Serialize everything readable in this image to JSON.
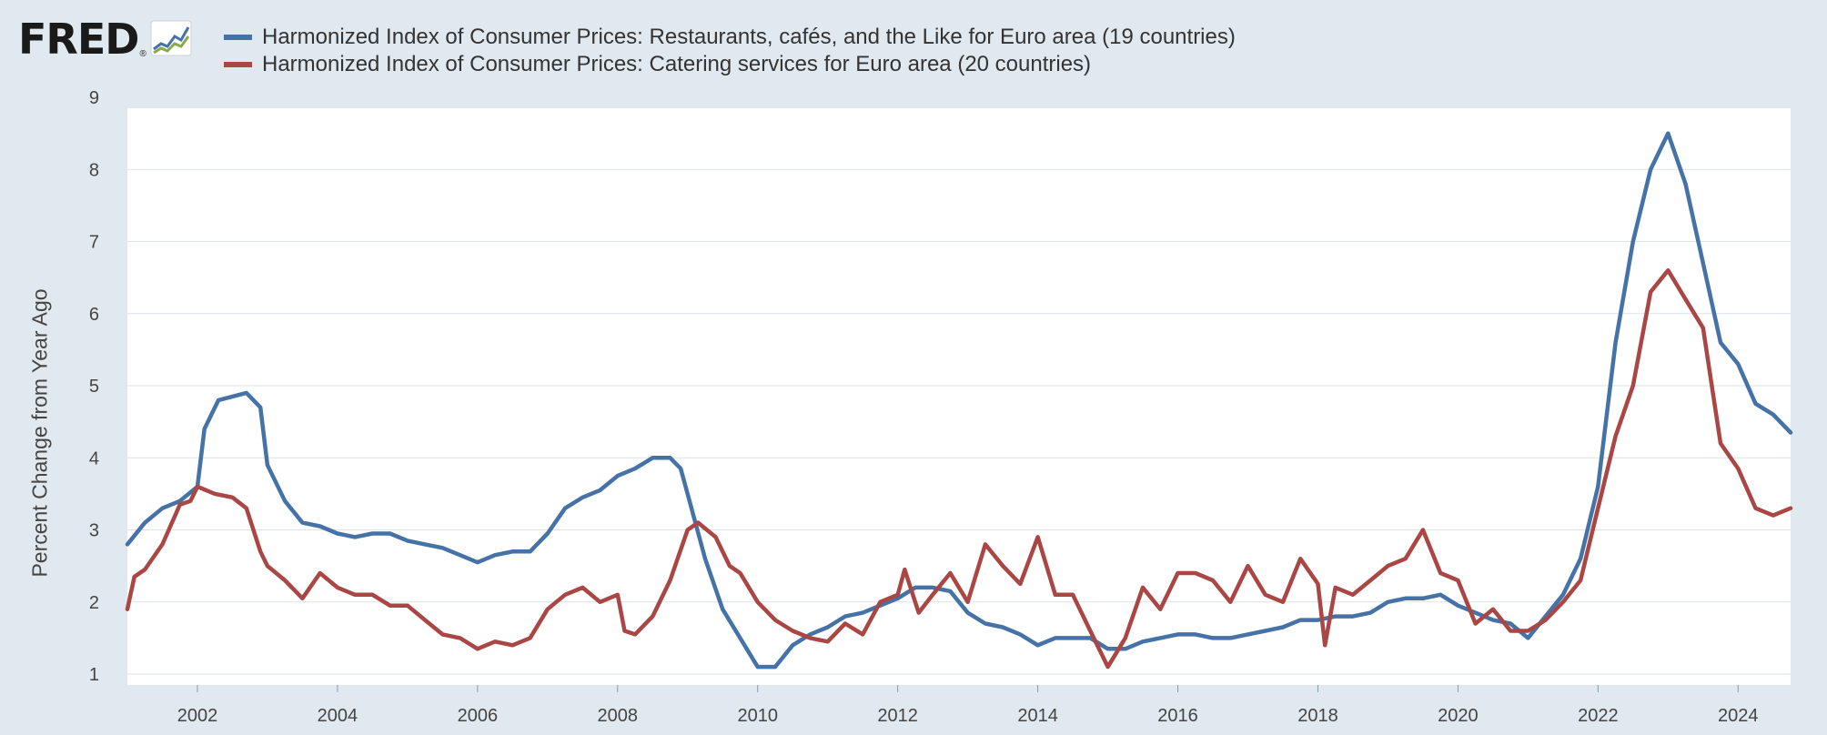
{
  "logo": {
    "text": "FRED",
    "reg_mark": "®",
    "icon": "line-chart-icon"
  },
  "legend": [
    {
      "label": "Harmonized Index of Consumer Prices: Restaurants, cafés, and the Like for Euro area (19 countries)",
      "color": "#4572a7"
    },
    {
      "label": "Harmonized Index of Consumer Prices: Catering services for Euro area (20 countries)",
      "color": "#aa4643"
    }
  ],
  "chart_data": {
    "type": "line",
    "ylabel": "Percent Change from Year Ago",
    "xlim": [
      2001.0,
      2024.75
    ],
    "ylim": [
      1,
      9
    ],
    "yticks": [
      1,
      2,
      3,
      4,
      5,
      6,
      7,
      8,
      9
    ],
    "xticks": [
      2002,
      2004,
      2006,
      2008,
      2010,
      2012,
      2014,
      2016,
      2018,
      2020,
      2022,
      2024
    ],
    "grid": "horizontal",
    "legend_position": "top",
    "series": [
      {
        "name": "Harmonized Index of Consumer Prices: Restaurants, cafés, and the Like for Euro area (19 countries)",
        "color": "#4572a7",
        "points": [
          [
            2001.0,
            2.8
          ],
          [
            2001.25,
            3.1
          ],
          [
            2001.5,
            3.3
          ],
          [
            2001.75,
            3.4
          ],
          [
            2002.0,
            3.6
          ],
          [
            2002.1,
            4.4
          ],
          [
            2002.3,
            4.8
          ],
          [
            2002.5,
            4.85
          ],
          [
            2002.7,
            4.9
          ],
          [
            2002.9,
            4.7
          ],
          [
            2003.0,
            3.9
          ],
          [
            2003.25,
            3.4
          ],
          [
            2003.5,
            3.1
          ],
          [
            2003.75,
            3.05
          ],
          [
            2004.0,
            2.95
          ],
          [
            2004.25,
            2.9
          ],
          [
            2004.5,
            2.95
          ],
          [
            2004.75,
            2.95
          ],
          [
            2005.0,
            2.85
          ],
          [
            2005.25,
            2.8
          ],
          [
            2005.5,
            2.75
          ],
          [
            2005.75,
            2.65
          ],
          [
            2006.0,
            2.55
          ],
          [
            2006.25,
            2.65
          ],
          [
            2006.5,
            2.7
          ],
          [
            2006.75,
            2.7
          ],
          [
            2007.0,
            2.95
          ],
          [
            2007.25,
            3.3
          ],
          [
            2007.5,
            3.45
          ],
          [
            2007.75,
            3.55
          ],
          [
            2008.0,
            3.75
          ],
          [
            2008.25,
            3.85
          ],
          [
            2008.5,
            4.0
          ],
          [
            2008.75,
            4.0
          ],
          [
            2008.9,
            3.85
          ],
          [
            2009.0,
            3.5
          ],
          [
            2009.25,
            2.6
          ],
          [
            2009.5,
            1.9
          ],
          [
            2009.75,
            1.5
          ],
          [
            2010.0,
            1.1
          ],
          [
            2010.25,
            1.1
          ],
          [
            2010.5,
            1.4
          ],
          [
            2010.75,
            1.55
          ],
          [
            2011.0,
            1.65
          ],
          [
            2011.25,
            1.8
          ],
          [
            2011.5,
            1.85
          ],
          [
            2011.75,
            1.95
          ],
          [
            2012.0,
            2.05
          ],
          [
            2012.25,
            2.2
          ],
          [
            2012.5,
            2.2
          ],
          [
            2012.75,
            2.15
          ],
          [
            2013.0,
            1.85
          ],
          [
            2013.25,
            1.7
          ],
          [
            2013.5,
            1.65
          ],
          [
            2013.75,
            1.55
          ],
          [
            2014.0,
            1.4
          ],
          [
            2014.25,
            1.5
          ],
          [
            2014.5,
            1.5
          ],
          [
            2014.75,
            1.5
          ],
          [
            2015.0,
            1.35
          ],
          [
            2015.25,
            1.35
          ],
          [
            2015.5,
            1.45
          ],
          [
            2015.75,
            1.5
          ],
          [
            2016.0,
            1.55
          ],
          [
            2016.25,
            1.55
          ],
          [
            2016.5,
            1.5
          ],
          [
            2016.75,
            1.5
          ],
          [
            2017.0,
            1.55
          ],
          [
            2017.25,
            1.6
          ],
          [
            2017.5,
            1.65
          ],
          [
            2017.75,
            1.75
          ],
          [
            2018.0,
            1.75
          ],
          [
            2018.25,
            1.8
          ],
          [
            2018.5,
            1.8
          ],
          [
            2018.75,
            1.85
          ],
          [
            2019.0,
            2.0
          ],
          [
            2019.25,
            2.05
          ],
          [
            2019.5,
            2.05
          ],
          [
            2019.75,
            2.1
          ],
          [
            2020.0,
            1.95
          ],
          [
            2020.25,
            1.85
          ],
          [
            2020.5,
            1.75
          ],
          [
            2020.75,
            1.7
          ],
          [
            2021.0,
            1.5
          ],
          [
            2021.25,
            1.8
          ],
          [
            2021.5,
            2.1
          ],
          [
            2021.75,
            2.6
          ],
          [
            2022.0,
            3.6
          ],
          [
            2022.25,
            5.6
          ],
          [
            2022.5,
            7.0
          ],
          [
            2022.75,
            8.0
          ],
          [
            2023.0,
            8.5
          ],
          [
            2023.25,
            7.8
          ],
          [
            2023.5,
            6.7
          ],
          [
            2023.75,
            5.6
          ],
          [
            2024.0,
            5.3
          ],
          [
            2024.25,
            4.75
          ],
          [
            2024.5,
            4.6
          ],
          [
            2024.75,
            4.35
          ]
        ]
      },
      {
        "name": "Harmonized Index of Consumer Prices: Catering services for Euro area (20 countries)",
        "color": "#aa4643",
        "points": [
          [
            2001.0,
            1.9
          ],
          [
            2001.1,
            2.35
          ],
          [
            2001.25,
            2.45
          ],
          [
            2001.5,
            2.8
          ],
          [
            2001.75,
            3.35
          ],
          [
            2001.9,
            3.4
          ],
          [
            2002.0,
            3.6
          ],
          [
            2002.25,
            3.5
          ],
          [
            2002.5,
            3.45
          ],
          [
            2002.7,
            3.3
          ],
          [
            2002.9,
            2.7
          ],
          [
            2003.0,
            2.5
          ],
          [
            2003.25,
            2.3
          ],
          [
            2003.5,
            2.05
          ],
          [
            2003.75,
            2.4
          ],
          [
            2004.0,
            2.2
          ],
          [
            2004.25,
            2.1
          ],
          [
            2004.5,
            2.1
          ],
          [
            2004.75,
            1.95
          ],
          [
            2005.0,
            1.95
          ],
          [
            2005.25,
            1.75
          ],
          [
            2005.5,
            1.55
          ],
          [
            2005.75,
            1.5
          ],
          [
            2006.0,
            1.35
          ],
          [
            2006.25,
            1.45
          ],
          [
            2006.5,
            1.4
          ],
          [
            2006.75,
            1.5
          ],
          [
            2007.0,
            1.9
          ],
          [
            2007.25,
            2.1
          ],
          [
            2007.5,
            2.2
          ],
          [
            2007.75,
            2.0
          ],
          [
            2008.0,
            2.1
          ],
          [
            2008.1,
            1.6
          ],
          [
            2008.25,
            1.55
          ],
          [
            2008.5,
            1.8
          ],
          [
            2008.75,
            2.3
          ],
          [
            2009.0,
            3.0
          ],
          [
            2009.15,
            3.1
          ],
          [
            2009.4,
            2.9
          ],
          [
            2009.6,
            2.5
          ],
          [
            2009.75,
            2.4
          ],
          [
            2010.0,
            2.0
          ],
          [
            2010.25,
            1.75
          ],
          [
            2010.5,
            1.6
          ],
          [
            2010.75,
            1.5
          ],
          [
            2011.0,
            1.45
          ],
          [
            2011.25,
            1.7
          ],
          [
            2011.5,
            1.55
          ],
          [
            2011.75,
            2.0
          ],
          [
            2012.0,
            2.1
          ],
          [
            2012.1,
            2.45
          ],
          [
            2012.3,
            1.85
          ],
          [
            2012.5,
            2.1
          ],
          [
            2012.75,
            2.4
          ],
          [
            2013.0,
            2.0
          ],
          [
            2013.25,
            2.8
          ],
          [
            2013.5,
            2.5
          ],
          [
            2013.75,
            2.25
          ],
          [
            2014.0,
            2.9
          ],
          [
            2014.25,
            2.1
          ],
          [
            2014.5,
            2.1
          ],
          [
            2014.75,
            1.6
          ],
          [
            2015.0,
            1.1
          ],
          [
            2015.25,
            1.5
          ],
          [
            2015.5,
            2.2
          ],
          [
            2015.75,
            1.9
          ],
          [
            2016.0,
            2.4
          ],
          [
            2016.25,
            2.4
          ],
          [
            2016.5,
            2.3
          ],
          [
            2016.75,
            2.0
          ],
          [
            2017.0,
            2.5
          ],
          [
            2017.25,
            2.1
          ],
          [
            2017.5,
            2.0
          ],
          [
            2017.75,
            2.6
          ],
          [
            2018.0,
            2.25
          ],
          [
            2018.1,
            1.4
          ],
          [
            2018.25,
            2.2
          ],
          [
            2018.5,
            2.1
          ],
          [
            2018.75,
            2.3
          ],
          [
            2019.0,
            2.5
          ],
          [
            2019.25,
            2.6
          ],
          [
            2019.5,
            3.0
          ],
          [
            2019.75,
            2.4
          ],
          [
            2020.0,
            2.3
          ],
          [
            2020.25,
            1.7
          ],
          [
            2020.5,
            1.9
          ],
          [
            2020.75,
            1.6
          ],
          [
            2021.0,
            1.6
          ],
          [
            2021.25,
            1.75
          ],
          [
            2021.5,
            2.0
          ],
          [
            2021.75,
            2.3
          ],
          [
            2022.0,
            3.3
          ],
          [
            2022.25,
            4.3
          ],
          [
            2022.5,
            5.0
          ],
          [
            2022.75,
            6.3
          ],
          [
            2023.0,
            6.6
          ],
          [
            2023.25,
            6.2
          ],
          [
            2023.5,
            5.8
          ],
          [
            2023.75,
            4.2
          ],
          [
            2024.0,
            3.85
          ],
          [
            2024.25,
            3.3
          ],
          [
            2024.5,
            3.2
          ],
          [
            2024.75,
            3.3
          ]
        ]
      }
    ]
  }
}
